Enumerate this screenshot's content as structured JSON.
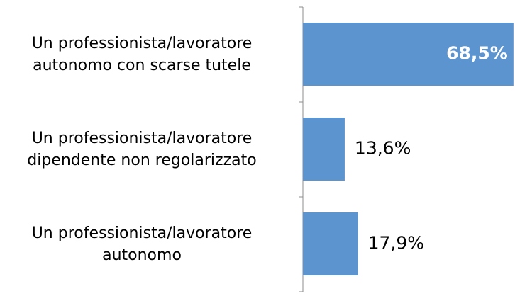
{
  "chart_data": {
    "type": "bar",
    "orientation": "horizontal",
    "categories": [
      "Un professionista/lavoratore\nautonomo con scarse tutele",
      "Un professionista/lavoratore\ndipendente non regolarizzato",
      "Un professionista/lavoratore\nautonomo"
    ],
    "values": [
      68.5,
      13.6,
      17.9
    ],
    "value_labels": [
      "68,5%",
      "13,6%",
      "17,9%"
    ],
    "color": "#5b94cf",
    "xlim": [
      0,
      69
    ]
  }
}
